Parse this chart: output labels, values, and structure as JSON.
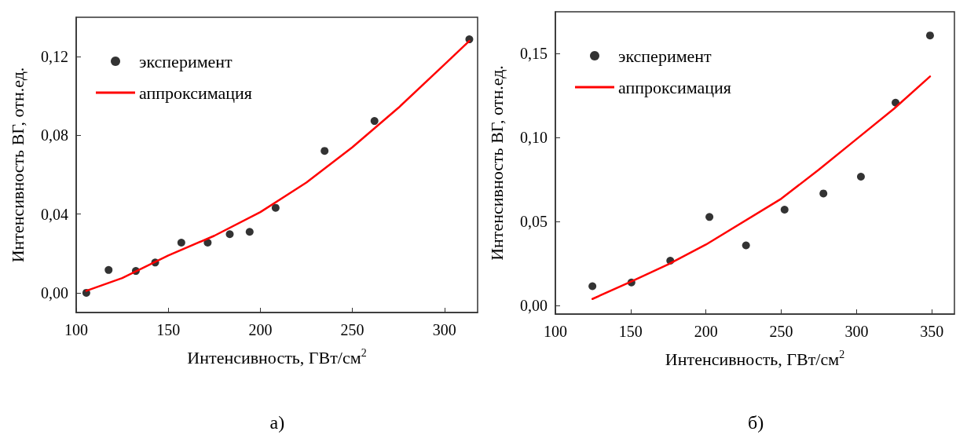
{
  "chart_data": [
    {
      "type": "scatter",
      "xlabel": "Интенсивность, ГВт/см$^{2}$",
      "ylabel": "Интенсивность ВГ, отн.ед.",
      "xlim": [
        100,
        318
      ],
      "ylim": [
        -0.01,
        0.14
      ],
      "xticks": [
        100,
        150,
        200,
        250,
        300
      ],
      "yticks": [
        {
          "value": 0,
          "label": "0,00"
        },
        {
          "value": 0.04,
          "label": "0,04"
        },
        {
          "value": 0.08,
          "label": "0,08"
        },
        {
          "value": 0.12,
          "label": "0,12"
        }
      ],
      "legend": "top left",
      "grid": false,
      "annotations": [
        "а)"
      ],
      "series": [
        {
          "name": "эксперимент",
          "marker": "circle",
          "color": "#000000",
          "x": [
            105.5,
            117.6,
            132.4,
            142.9,
            157.1,
            171.4,
            183.4,
            194.2,
            208.3,
            234.9,
            262,
            313.5
          ],
          "values": [
            0,
            0.0116,
            0.0111,
            0.0154,
            0.0255,
            0.0255,
            0.0298,
            0.031,
            0.0432,
            0.0721,
            0.0873,
            0.1288
          ]
        },
        {
          "name": "аппроксимация",
          "type": "line",
          "marker": "none",
          "line_style": "solid",
          "color": "#ff0000",
          "x": [
            105.5,
            125,
            150,
            175,
            200,
            225,
            250,
            275,
            300,
            313.5
          ],
          "values": [
            0.001,
            0.0075,
            0.019,
            0.029,
            0.041,
            0.056,
            0.074,
            0.094,
            0.116,
            0.128
          ]
        }
      ]
    },
    {
      "type": "scatter",
      "xlabel": "Интенсивность, ГВт/см$^{2}$",
      "ylabel": "Интенсивность ВГ, отн.ед.",
      "xlim": [
        100,
        365
      ],
      "ylim": [
        -0.005,
        0.175
      ],
      "xticks": [
        100,
        150,
        200,
        250,
        300,
        350
      ],
      "yticks": [
        {
          "value": 0,
          "label": "0,00"
        },
        {
          "value": 0.05,
          "label": "0,05"
        },
        {
          "value": 0.1,
          "label": "0,10"
        },
        {
          "value": 0.15,
          "label": "0,15"
        }
      ],
      "legend": "top left",
      "grid": false,
      "annotations": [
        "б)"
      ],
      "series": [
        {
          "name": "эксперимент",
          "marker": "circle",
          "color": "#000000",
          "x": [
            124.6,
            150.5,
            176.3,
            202.3,
            226.6,
            252.2,
            278,
            302.9,
            325.9,
            348.8
          ],
          "values": [
            0.0116,
            0.0138,
            0.0268,
            0.0528,
            0.0359,
            0.0572,
            0.0668,
            0.0768,
            0.1209,
            0.1609
          ]
        },
        {
          "name": "аппроксимация",
          "type": "line",
          "marker": "none",
          "line_style": "solid",
          "color": "#ff0000",
          "x": [
            124.6,
            150,
            175,
            200,
            250,
            275,
            300,
            325,
            348.8
          ],
          "values": [
            0.004,
            0.0142,
            0.0246,
            0.0364,
            0.0637,
            0.081,
            0.0992,
            0.1174,
            0.1365
          ]
        }
      ]
    }
  ]
}
